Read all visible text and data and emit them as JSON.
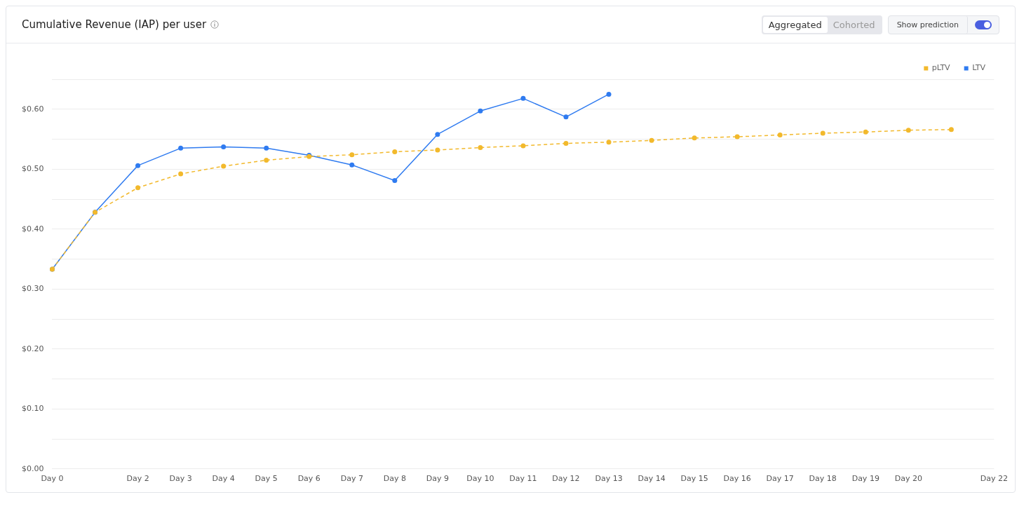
{
  "chart_data": {
    "type": "line",
    "title": "Cumulative Revenue (IAP) per user",
    "annotations": [
      "Aggregated",
      "Cohorted",
      "Show prediction"
    ],
    "categories": [
      "Day 0",
      null,
      "Day 2",
      "Day 3",
      "Day 4",
      "Day 5",
      "Day 6",
      "Day 7",
      "Day 8",
      "Day 9",
      "Day 10",
      "Day 11",
      "Day 12",
      "Day 13",
      "Day 14",
      "Day 15",
      "Day 16",
      "Day 17",
      "Day 18",
      "Day 19",
      "Day 20",
      null,
      "Day 22"
    ],
    "series": [
      {
        "name": "LTV",
        "color": "#2f7bf0",
        "line_style": "solid",
        "values": [
          0.333,
          0.428,
          0.506,
          0.535,
          0.537,
          0.535,
          0.523,
          0.507,
          0.481,
          0.558,
          0.597,
          0.618,
          0.587,
          0.625,
          null,
          null,
          null,
          null,
          null,
          null,
          null,
          null,
          null
        ]
      },
      {
        "name": "pLTV",
        "color": "#f2b92c",
        "line_style": "dashed",
        "values": [
          0.333,
          0.428,
          0.469,
          0.492,
          0.505,
          0.515,
          0.521,
          0.524,
          0.529,
          0.532,
          0.536,
          0.539,
          0.543,
          0.545,
          0.548,
          0.552,
          0.554,
          0.557,
          0.56,
          0.562,
          0.565,
          0.566,
          null
        ]
      }
    ],
    "ylim": [
      0,
      0.65
    ],
    "yticks": [
      {
        "value": 0,
        "label": "$0.00"
      },
      {
        "value": 0.05,
        "label": null
      },
      {
        "value": 0.1,
        "label": "$0.10"
      },
      {
        "value": 0.15,
        "label": null
      },
      {
        "value": 0.2,
        "label": "$0.20"
      },
      {
        "value": 0.25,
        "label": null
      },
      {
        "value": 0.3,
        "label": "$0.30"
      },
      {
        "value": 0.35,
        "label": null
      },
      {
        "value": 0.4,
        "label": "$0.40"
      },
      {
        "value": 0.45,
        "label": null
      },
      {
        "value": 0.5,
        "label": "$0.50"
      },
      {
        "value": 0.55,
        "label": null
      },
      {
        "value": 0.6,
        "label": "$0.60"
      },
      {
        "value": 0.65,
        "label": null
      }
    ],
    "grid": "y",
    "legend": "top right",
    "marker": "circle"
  }
}
